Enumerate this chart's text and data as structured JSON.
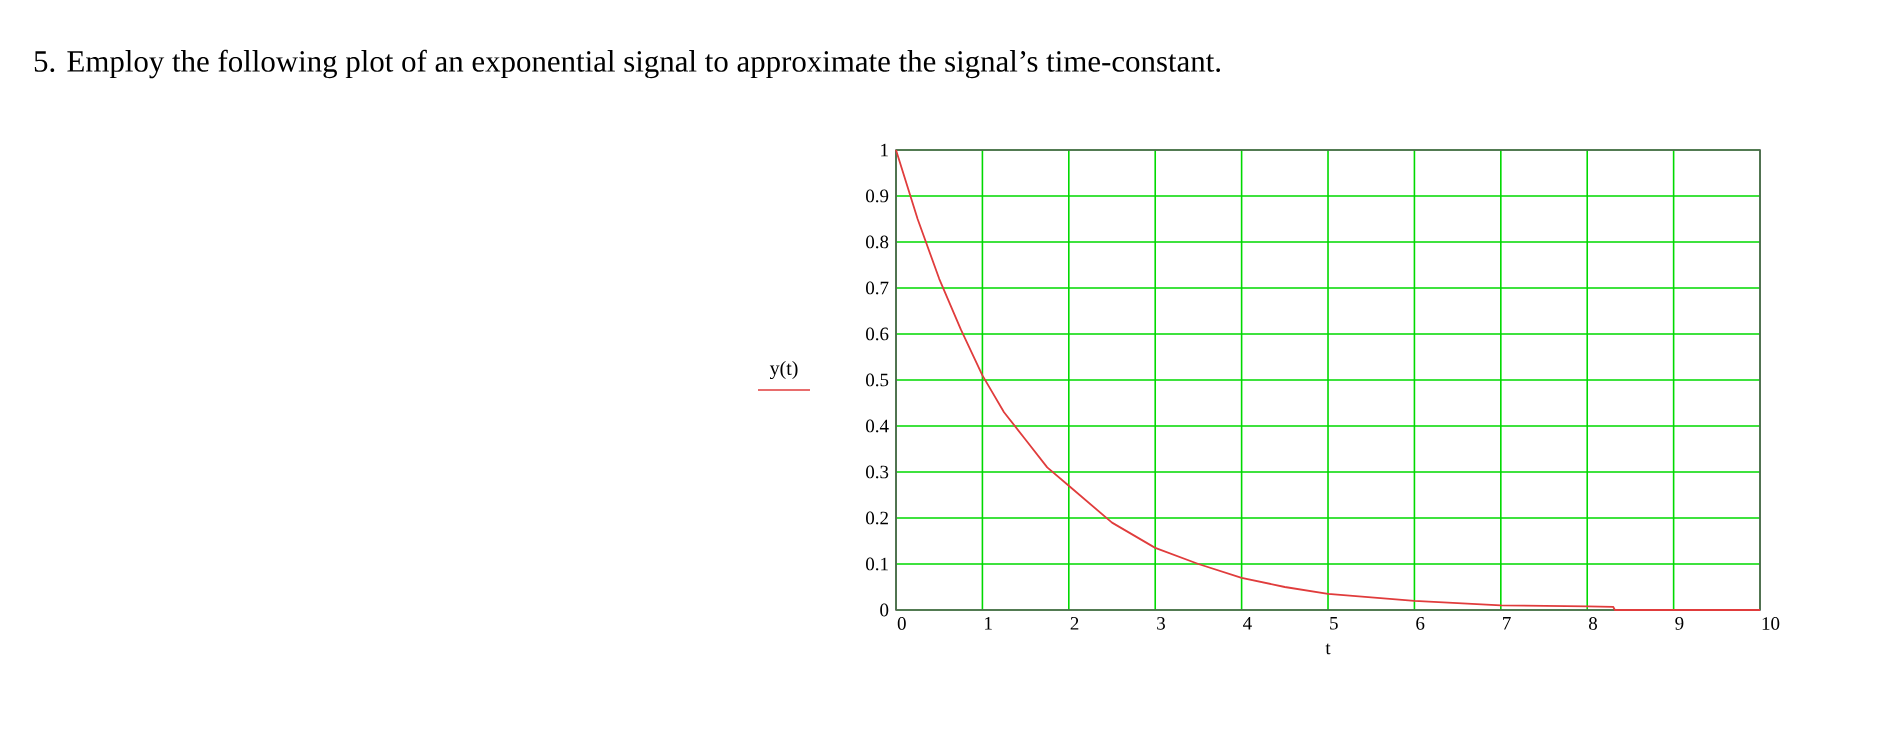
{
  "chart_data": {
    "type": "line",
    "title": "5. Employ the following plot of an exponential signal to approximate the signal’s time-constant.",
    "xlabel": "t",
    "xlim": [
      0,
      10
    ],
    "ylim": [
      0,
      1
    ],
    "xticks": [
      0,
      1,
      2,
      3,
      4,
      5,
      6,
      7,
      8,
      9,
      10
    ],
    "yticks": [
      0,
      0.1,
      0.2,
      0.3,
      0.4,
      0.5,
      0.6,
      0.7,
      0.8,
      0.9,
      1
    ],
    "grid": true,
    "legend": "left",
    "marker": "none",
    "line_style": "solid",
    "series": [
      {
        "name": "y(t)",
        "color": "#e03c3c",
        "x": [
          0,
          0.25,
          0.5,
          0.75,
          1,
          1.25,
          1.5,
          1.75,
          2,
          2.5,
          3,
          3.5,
          4,
          4.5,
          5,
          6,
          7,
          8,
          8.3,
          8.32,
          10
        ],
        "values": [
          1,
          0.85,
          0.72,
          0.61,
          0.51,
          0.43,
          0.37,
          0.31,
          0.27,
          0.19,
          0.135,
          0.1,
          0.07,
          0.05,
          0.035,
          0.02,
          0.01,
          0.008,
          0.007,
          0,
          0
        ]
      }
    ]
  }
}
